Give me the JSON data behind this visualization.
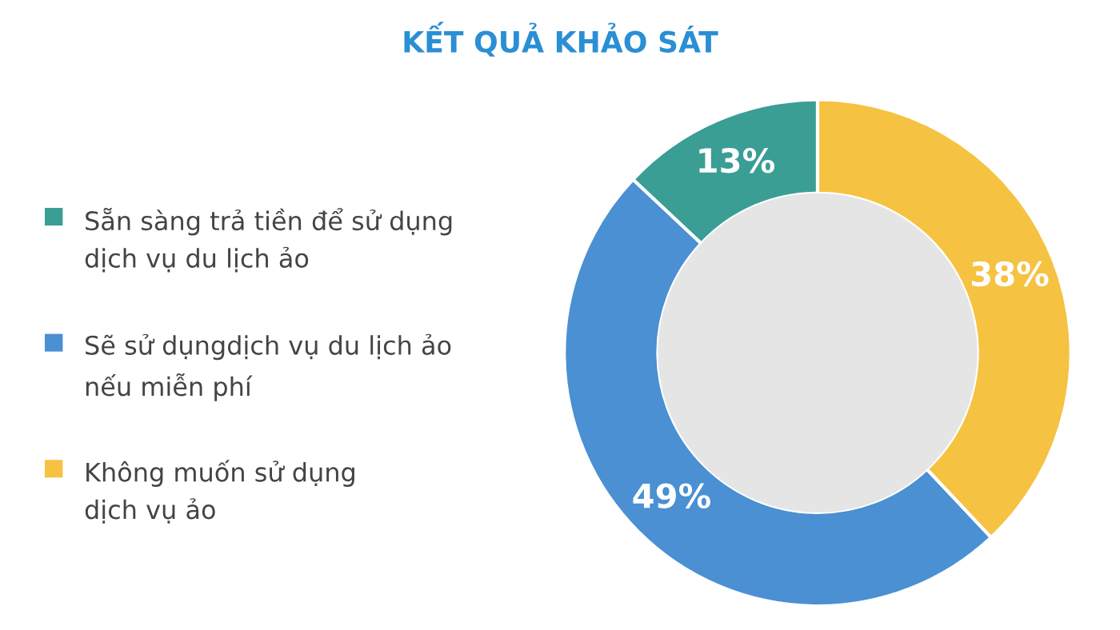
{
  "chart_data": {
    "type": "donut",
    "title": "KẾT QUẢ KHẢO SÁT",
    "categories": [
      "Sẵn sàng trả tiền để sử dụng\ndịch vụ du lịch ảo",
      "Sẽ sử dụngdịch vụ du lịch ảo\nnếu miễn phí",
      "Không muốn sử dụng\ndịch vụ ảo"
    ],
    "values": [
      13,
      49,
      38
    ],
    "colors": [
      "#3a9e95",
      "#4a90d2",
      "#f5c242"
    ],
    "value_labels": [
      "13%",
      "49%",
      "38%"
    ],
    "legend": "left"
  }
}
